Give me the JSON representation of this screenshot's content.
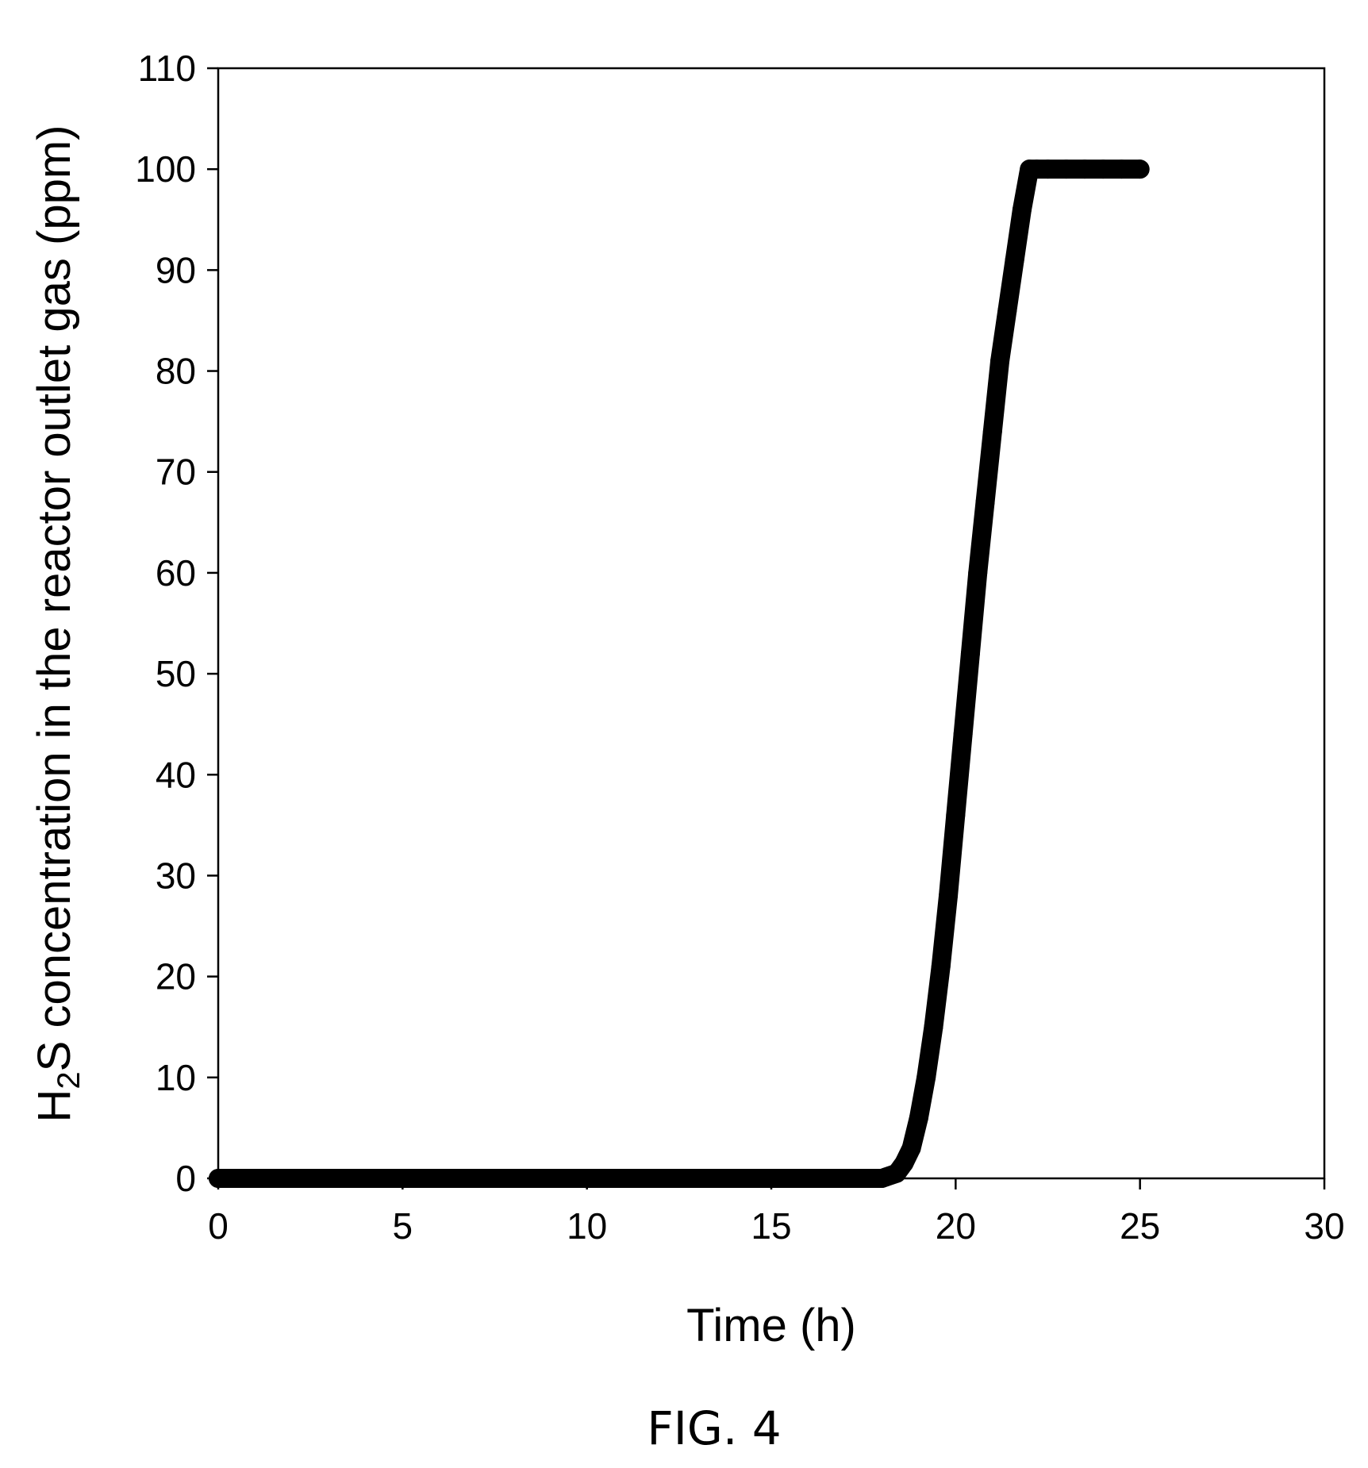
{
  "chart_data": {
    "type": "scatter",
    "xlabel": "Time (h)",
    "ylabel": {
      "prefix": "H",
      "subscript": "2",
      "rest": "S concentration in the reactor outlet gas (ppm)"
    },
    "xlim": [
      0,
      30
    ],
    "ylim": [
      0,
      110
    ],
    "xticks": [
      0,
      5,
      10,
      15,
      20,
      25,
      30
    ],
    "yticks": [
      0,
      10,
      20,
      30,
      40,
      50,
      60,
      70,
      80,
      90,
      100,
      110
    ],
    "grid": false,
    "legend": "none",
    "marker_color": "#000000",
    "series": [
      {
        "x": [
          0,
          2,
          4,
          6,
          8,
          10,
          12,
          14,
          16,
          17,
          18,
          18.4,
          18.6,
          18.8,
          19.0,
          19.2,
          19.4,
          19.6,
          19.8,
          20.0,
          20.2,
          20.4,
          20.6,
          20.8,
          21.0,
          21.2,
          21.4,
          21.6,
          21.8,
          22.0,
          22.2,
          22.5,
          23,
          23.5,
          24,
          24.5,
          25
        ],
        "y": [
          0,
          0,
          0,
          0,
          0,
          0,
          0,
          0,
          0,
          0,
          0,
          0.5,
          1.5,
          3,
          6,
          10,
          15,
          21,
          28,
          36,
          44,
          52,
          60,
          67,
          74,
          81,
          86,
          91,
          96,
          100,
          100,
          100,
          100,
          100,
          100,
          100,
          100
        ]
      }
    ]
  },
  "figure": {
    "caption": "FIG. 4"
  }
}
